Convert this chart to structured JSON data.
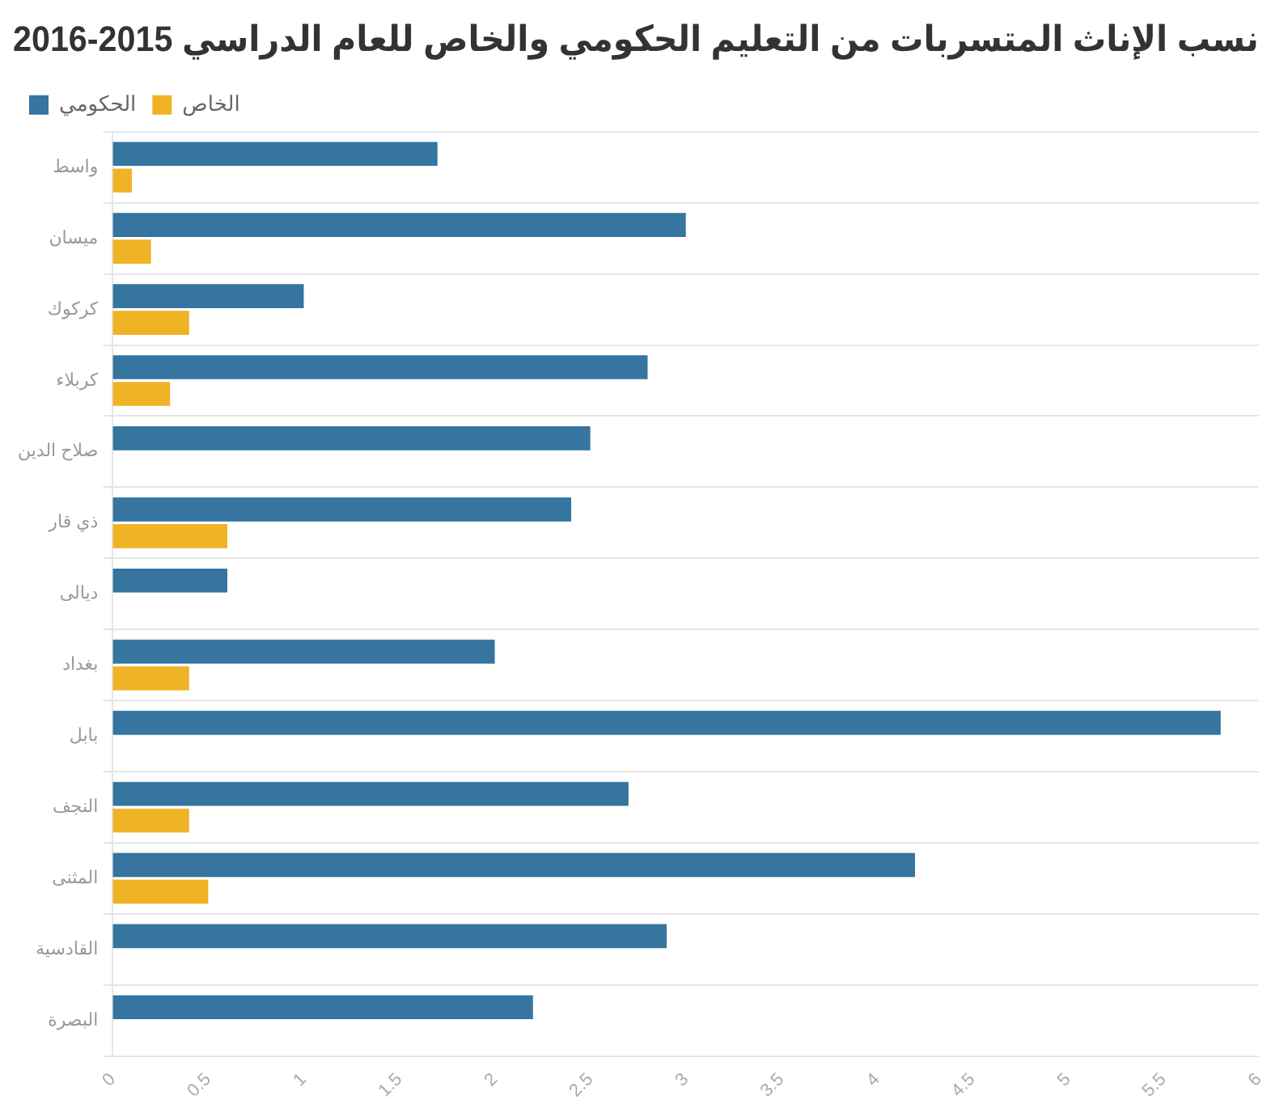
{
  "chart_data": {
    "type": "bar",
    "orientation": "horizontal",
    "title": "نسب الإناث المتسربات من التعليم الحكومي والخاص للعام الدراسي 2015-2016",
    "categories": [
      "واسط",
      "ميسان",
      "كركوك",
      "كربلاء",
      "صلاح الدين",
      "ذي قار",
      "ديالى",
      "بغداد",
      "بابل",
      "النجف",
      "المثنى",
      "القادسية",
      "البصرة"
    ],
    "series": [
      {
        "name": "الحكومي",
        "color": "#35759f",
        "values": [
          1.7,
          3.0,
          1.0,
          2.8,
          2.5,
          2.4,
          0.6,
          2.0,
          5.8,
          2.7,
          4.2,
          2.9,
          2.2
        ]
      },
      {
        "name": "الخاص",
        "color": "#efb325",
        "values": [
          0.1,
          0.2,
          0.4,
          0.3,
          null,
          0.6,
          null,
          0.4,
          null,
          0.4,
          0.5,
          null,
          null
        ]
      }
    ],
    "xlim": [
      0,
      6
    ],
    "xticks": [
      0,
      0.5,
      1,
      1.5,
      2,
      2.5,
      3,
      3.5,
      4,
      4.5,
      5,
      5.5,
      6
    ],
    "grid": "y",
    "legend": "top left"
  }
}
